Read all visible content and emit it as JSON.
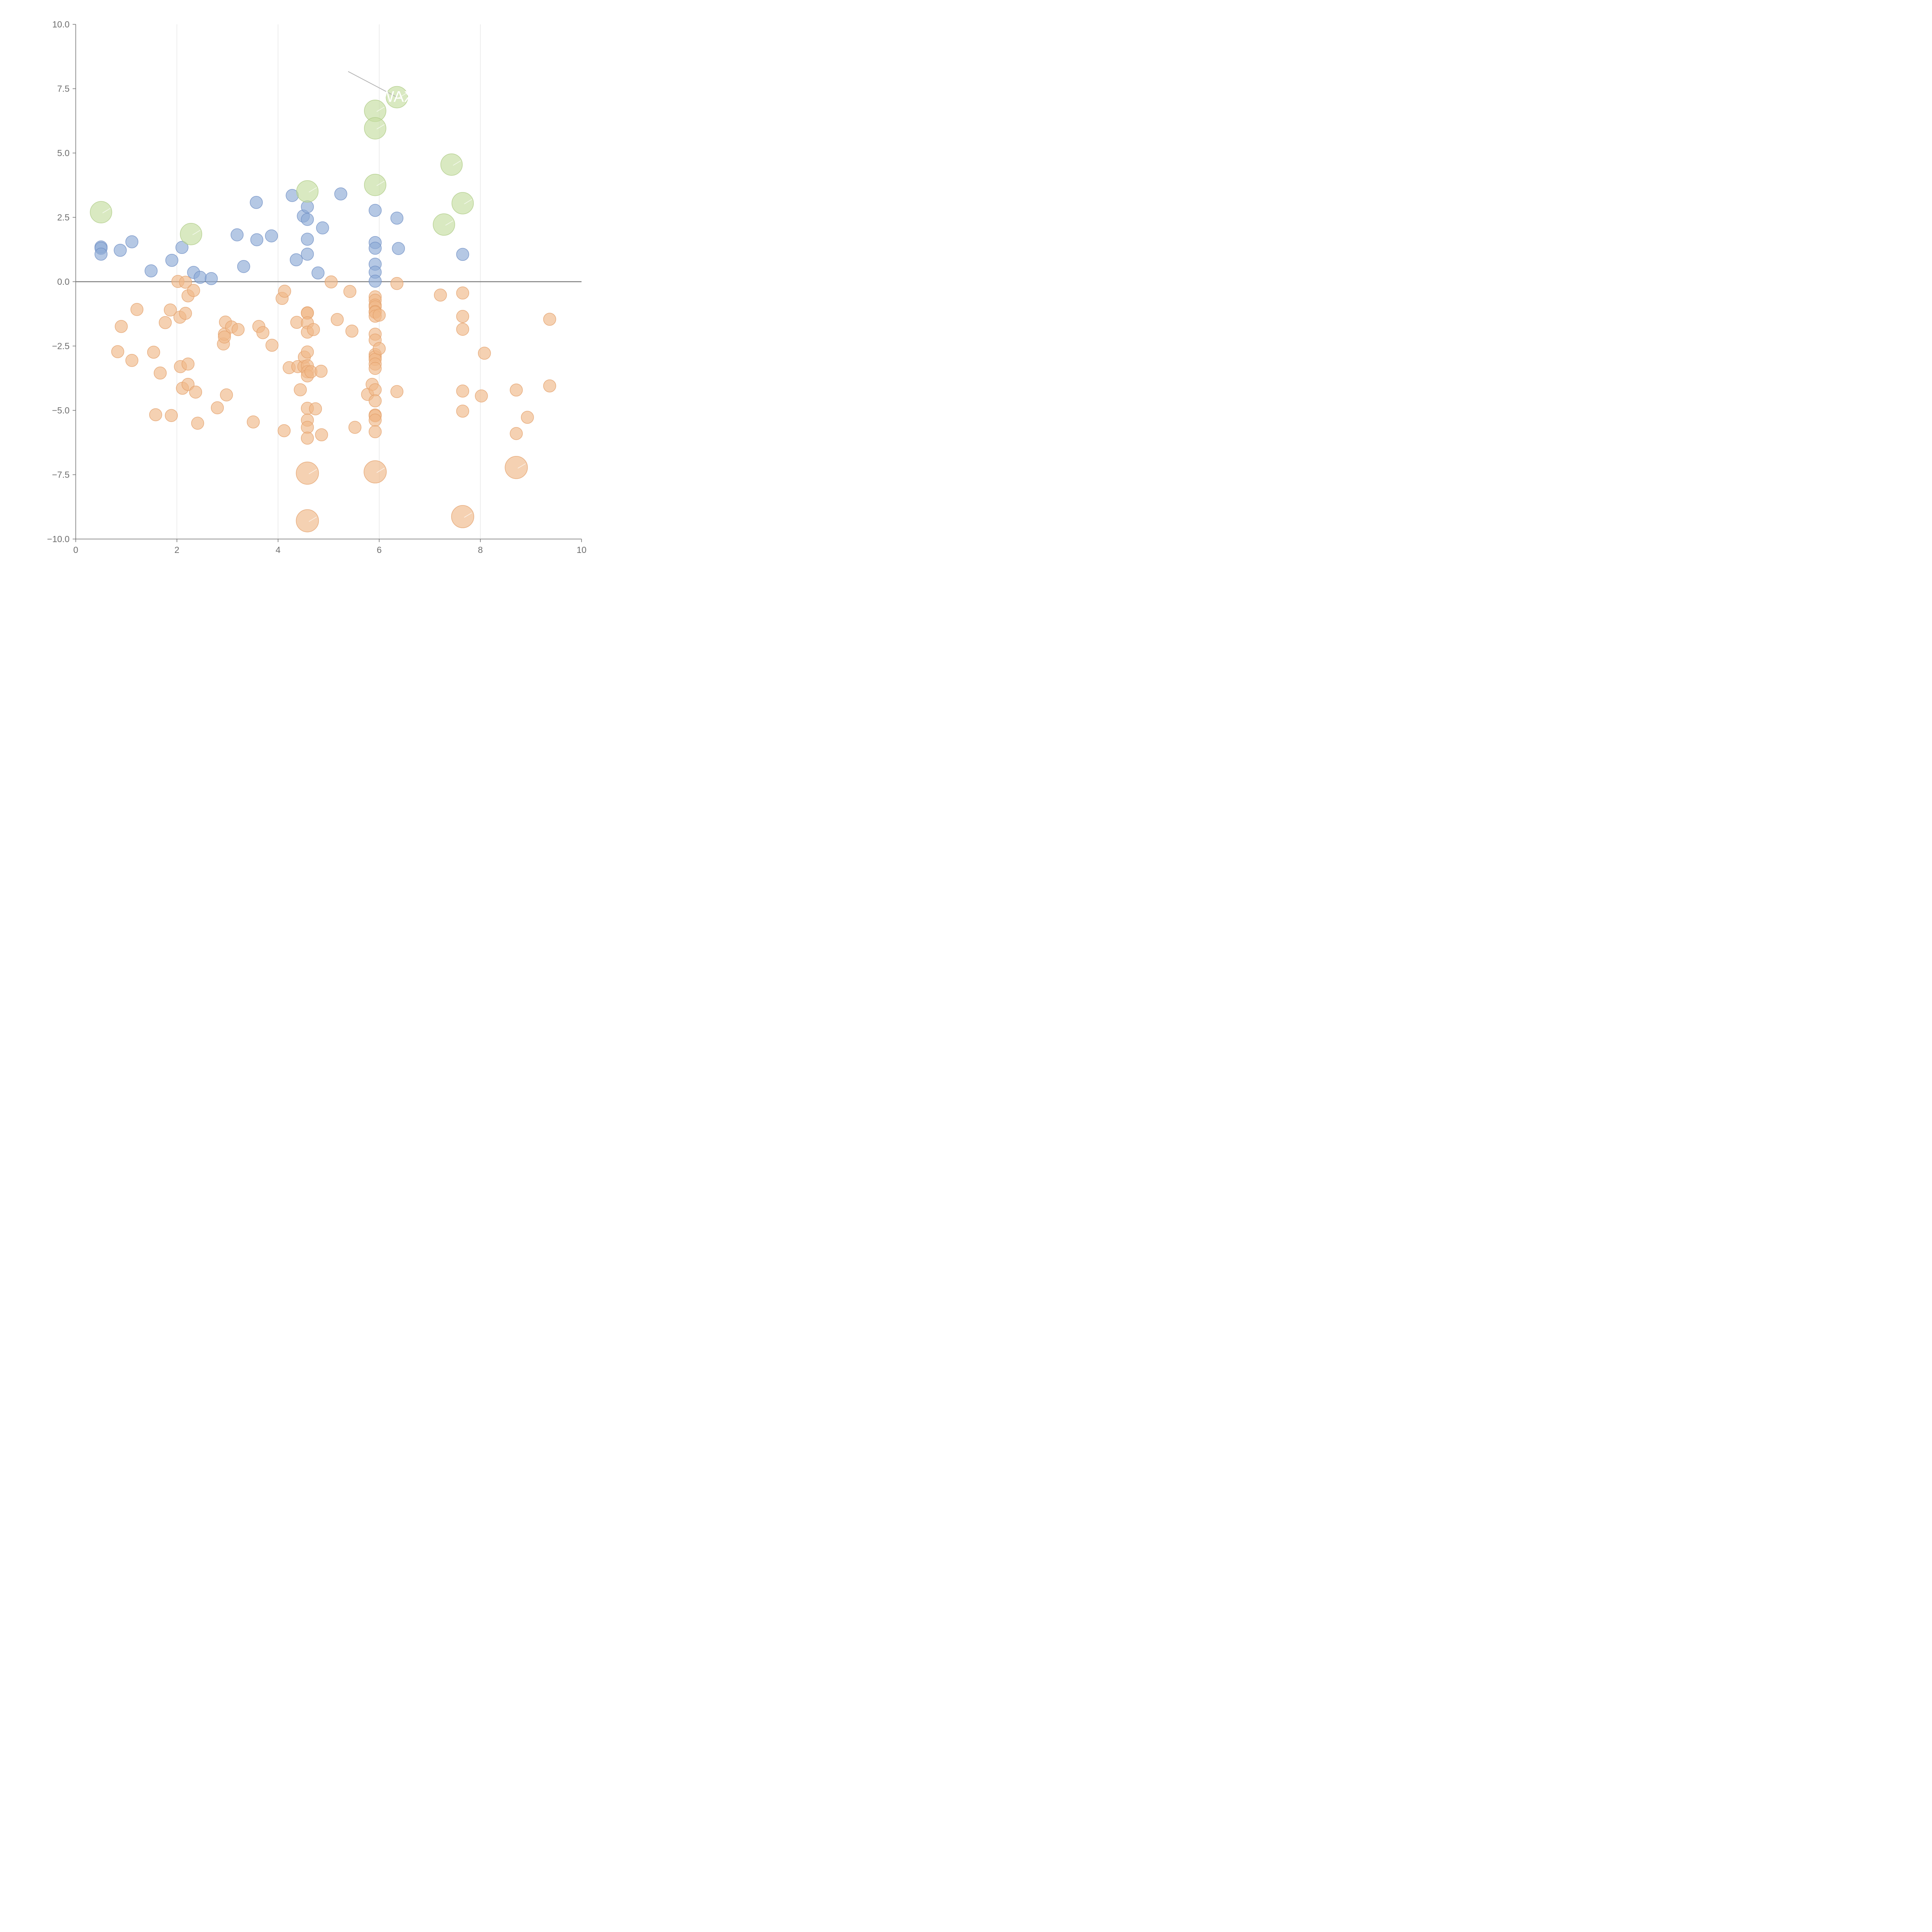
{
  "chart_data": {
    "type": "scatter",
    "title": "",
    "xlabel": "",
    "ylabel": "",
    "xlim": [
      0,
      10
    ],
    "ylim": [
      -10,
      10
    ],
    "x_ticks": [
      0,
      2,
      4,
      6,
      8,
      10
    ],
    "x_tick_labels": [
      "0",
      "2",
      "4",
      "6",
      "8",
      "10"
    ],
    "y_ticks": [
      -10,
      -7.5,
      -5,
      -2.5,
      0,
      2.5,
      5,
      7.5,
      10
    ],
    "y_tick_labels": [
      "−10.0",
      "−7.5",
      "−5.0",
      "−2.5",
      "0.0",
      "2.5",
      "5.0",
      "7.5",
      "10.0"
    ],
    "vertical_grid": true,
    "zero_line": true,
    "legend": "none",
    "colors": {
      "positive": "#8eaad6",
      "negative": "#f0b888",
      "highlight": "#c5dda0",
      "grid": "#dddddd",
      "axis": "#707070",
      "zero_line": "#808080"
    },
    "series": [
      {
        "name": "positive",
        "color": "#8eaad6",
        "points": [
          [
            0.5,
            1.35
          ],
          [
            0.5,
            1.3
          ],
          [
            0.5,
            1.07
          ],
          [
            0.88,
            1.22
          ],
          [
            1.11,
            1.55
          ],
          [
            1.49,
            0.42
          ],
          [
            1.9,
            0.83
          ],
          [
            2.1,
            1.33
          ],
          [
            2.33,
            0.36
          ],
          [
            2.46,
            0.17
          ],
          [
            2.68,
            0.12
          ],
          [
            3.19,
            1.82
          ],
          [
            3.32,
            0.59
          ],
          [
            3.57,
            3.08
          ],
          [
            3.58,
            1.63
          ],
          [
            3.87,
            1.78
          ],
          [
            4.28,
            3.35
          ],
          [
            4.36,
            0.85
          ],
          [
            4.5,
            2.55
          ],
          [
            4.58,
            2.91
          ],
          [
            4.58,
            2.42
          ],
          [
            4.58,
            1.65
          ],
          [
            4.58,
            1.07
          ],
          [
            4.79,
            0.34
          ],
          [
            4.88,
            2.09
          ],
          [
            5.24,
            3.41
          ],
          [
            5.92,
            2.77
          ],
          [
            5.92,
            1.52
          ],
          [
            5.92,
            1.3
          ],
          [
            5.92,
            0.68
          ],
          [
            5.92,
            0.37
          ],
          [
            5.92,
            0.02
          ],
          [
            6.35,
            2.47
          ],
          [
            6.38,
            1.29
          ],
          [
            7.65,
            1.06
          ]
        ]
      },
      {
        "name": "negative",
        "color": "#f0b888",
        "points": [
          [
            0.83,
            -2.72
          ],
          [
            0.9,
            -1.74
          ],
          [
            1.11,
            -3.06
          ],
          [
            1.21,
            -1.08
          ],
          [
            1.54,
            -2.74
          ],
          [
            1.58,
            -5.17
          ],
          [
            1.67,
            -3.55
          ],
          [
            1.77,
            -1.59
          ],
          [
            1.87,
            -1.1
          ],
          [
            1.89,
            -5.2
          ],
          [
            2.02,
            0.01
          ],
          [
            2.06,
            -1.38
          ],
          [
            2.07,
            -3.3
          ],
          [
            2.11,
            -4.14
          ],
          [
            2.17,
            -0.02
          ],
          [
            2.17,
            -1.23
          ],
          [
            2.22,
            -0.55
          ],
          [
            2.22,
            -3.2
          ],
          [
            2.22,
            -3.99
          ],
          [
            2.33,
            -0.34
          ],
          [
            2.37,
            -4.29
          ],
          [
            2.41,
            -5.5
          ],
          [
            2.8,
            -4.9
          ],
          [
            2.92,
            -2.42
          ],
          [
            2.94,
            -2.04
          ],
          [
            2.94,
            -2.15
          ],
          [
            2.96,
            -1.57
          ],
          [
            2.98,
            -4.4
          ],
          [
            3.08,
            -1.76
          ],
          [
            3.21,
            -1.86
          ],
          [
            3.51,
            -5.45
          ],
          [
            3.62,
            -1.74
          ],
          [
            3.7,
            -1.98
          ],
          [
            3.88,
            -2.47
          ],
          [
            4.08,
            -0.65
          ],
          [
            4.12,
            -5.79
          ],
          [
            4.13,
            -0.37
          ],
          [
            4.22,
            -3.34
          ],
          [
            4.37,
            -1.58
          ],
          [
            4.39,
            -3.3
          ],
          [
            4.44,
            -4.2
          ],
          [
            4.51,
            -3.3
          ],
          [
            4.52,
            -2.93
          ],
          [
            4.58,
            -1.21
          ],
          [
            4.58,
            -1.22
          ],
          [
            4.58,
            -1.6
          ],
          [
            4.58,
            -1.96
          ],
          [
            4.58,
            -2.73
          ],
          [
            4.58,
            -3.27
          ],
          [
            4.58,
            -3.5
          ],
          [
            4.58,
            -3.66
          ],
          [
            4.58,
            -4.92
          ],
          [
            4.58,
            -5.38
          ],
          [
            4.58,
            -5.66
          ],
          [
            4.58,
            -6.08
          ],
          [
            4.65,
            -3.5
          ],
          [
            4.7,
            -1.86
          ],
          [
            4.74,
            -4.94
          ],
          [
            4.85,
            -3.48
          ],
          [
            4.86,
            -5.95
          ],
          [
            5.05,
            -0.01
          ],
          [
            5.17,
            -1.47
          ],
          [
            5.42,
            -0.38
          ],
          [
            5.46,
            -1.92
          ],
          [
            5.52,
            -5.66
          ],
          [
            5.77,
            -4.38
          ],
          [
            5.86,
            -3.99
          ],
          [
            5.92,
            -0.59
          ],
          [
            5.92,
            -0.72
          ],
          [
            5.92,
            -0.91
          ],
          [
            5.92,
            -0.98
          ],
          [
            5.92,
            -1.16
          ],
          [
            5.92,
            -1.19
          ],
          [
            5.92,
            -1.34
          ],
          [
            5.92,
            -2.04
          ],
          [
            5.92,
            -2.27
          ],
          [
            5.92,
            -2.83
          ],
          [
            5.92,
            -2.92
          ],
          [
            5.92,
            -3.02
          ],
          [
            5.92,
            -3.2
          ],
          [
            5.92,
            -3.37
          ],
          [
            5.92,
            -4.2
          ],
          [
            5.92,
            -4.63
          ],
          [
            5.92,
            -5.18
          ],
          [
            5.92,
            -5.21
          ],
          [
            5.92,
            -5.38
          ],
          [
            5.92,
            -5.83
          ],
          [
            6.0,
            -1.3
          ],
          [
            6.0,
            -2.6
          ],
          [
            6.35,
            -0.07
          ],
          [
            6.35,
            -4.27
          ],
          [
            7.21,
            -0.52
          ],
          [
            7.65,
            -0.44
          ],
          [
            7.65,
            -1.35
          ],
          [
            7.65,
            -1.85
          ],
          [
            7.65,
            -4.25
          ],
          [
            7.65,
            -5.03
          ],
          [
            8.02,
            -4.44
          ],
          [
            8.08,
            -2.78
          ],
          [
            8.71,
            -4.21
          ],
          [
            8.71,
            -5.9
          ],
          [
            8.93,
            -5.27
          ],
          [
            9.37,
            -1.46
          ],
          [
            9.37,
            -4.05
          ]
        ]
      },
      {
        "name": "highlight-positive",
        "color": "#c5dda0",
        "points": [
          [
            0.5,
            2.7
          ],
          [
            2.28,
            1.85
          ],
          [
            4.58,
            3.51
          ],
          [
            5.92,
            6.64
          ],
          [
            5.92,
            5.96
          ],
          [
            5.92,
            3.76
          ],
          [
            6.35,
            7.17
          ],
          [
            7.28,
            2.22
          ],
          [
            7.43,
            4.55
          ],
          [
            7.65,
            3.05
          ]
        ]
      },
      {
        "name": "highlight-negative",
        "color": "#f0b888",
        "points": [
          [
            4.58,
            -7.44
          ],
          [
            4.58,
            -9.29
          ],
          [
            5.92,
            -7.39
          ],
          [
            7.65,
            -9.13
          ],
          [
            8.71,
            -7.22
          ]
        ]
      }
    ],
    "annotations": [
      {
        "text": "WAX",
        "x": 6.35,
        "y": 7.17
      }
    ]
  }
}
